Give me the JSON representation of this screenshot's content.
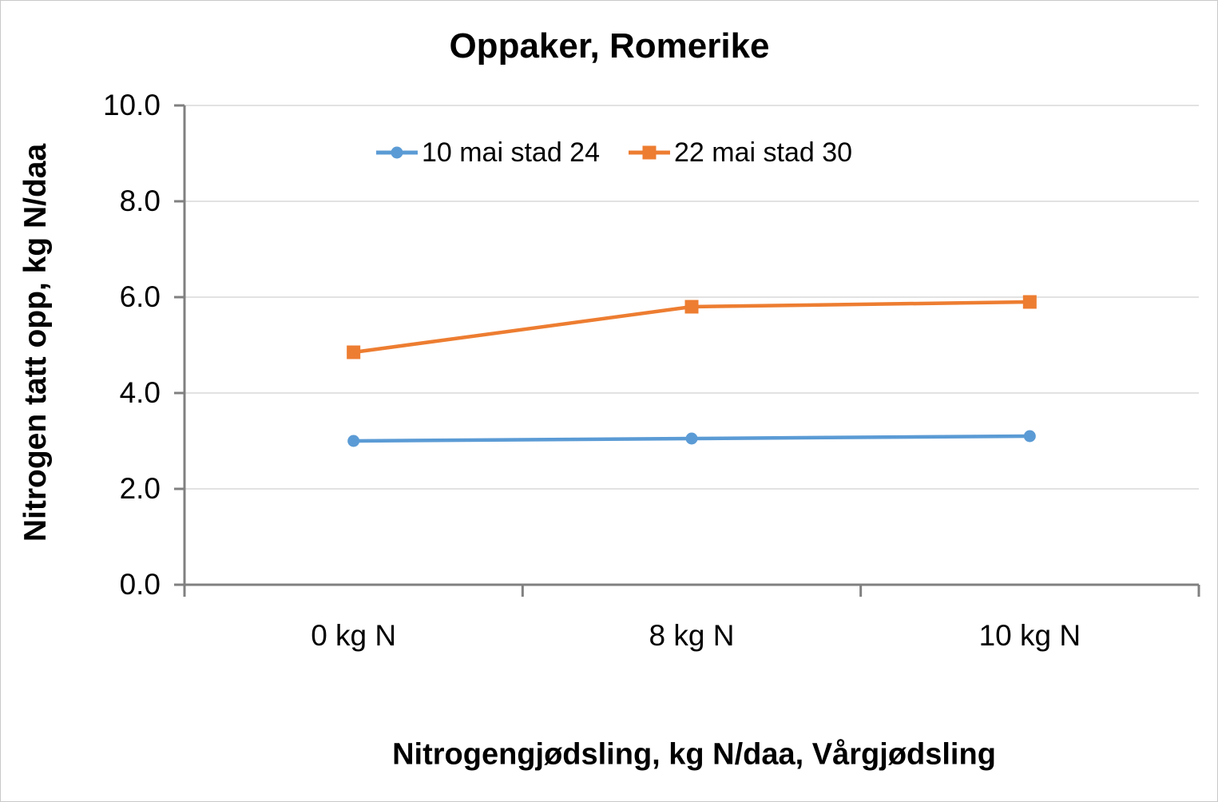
{
  "chart_data": {
    "type": "line",
    "title": "Oppaker, Romerike",
    "categories": [
      "0 kg N",
      "8 kg N",
      "10 kg N"
    ],
    "series": [
      {
        "name": "10 mai stad 24",
        "values": [
          3.0,
          3.05,
          3.1
        ],
        "color": "#5b9bd5",
        "marker": "circle"
      },
      {
        "name": "22 mai stad 30",
        "values": [
          4.85,
          5.8,
          5.9
        ],
        "color": "#ed7d31",
        "marker": "square"
      }
    ],
    "xlabel": "Nitrogengjødsling, kg N/daa, Vårgjødsling",
    "ylabel": "Nitrogen tatt opp, kg N/daa",
    "ylim": [
      0,
      10
    ],
    "ytick_step": 2,
    "ytick_labels": [
      "0.0",
      "2.0",
      "4.0",
      "6.0",
      "8.0",
      "10.0"
    ],
    "grid": true,
    "legend_position": "top-center",
    "colors": {
      "gridline": "#d9d9d9",
      "axis": "#808080",
      "text": "#000000",
      "background": "#ffffff",
      "border": "#c9c9c9"
    }
  }
}
